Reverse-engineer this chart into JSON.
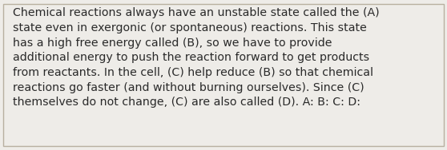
{
  "text": "Chemical reactions always have an unstable state called the (A)\nstate even in exergonic (or spontaneous) reactions. This state\nhas a high free energy called (B), so we have to provide\nadditional energy to push the reaction forward to get products\nfrom reactants. In the cell, (C) help reduce (B) so that chemical\nreactions go faster (and without burning ourselves). Since (C)\nthemselves do not change, (C) are also called (D). A: B: C: D:",
  "background_color": "#eeece8",
  "border_color": "#b8b0a0",
  "text_color": "#2a2a2a",
  "font_size": 10.2,
  "fig_width": 5.58,
  "fig_height": 1.88,
  "dpi": 100
}
